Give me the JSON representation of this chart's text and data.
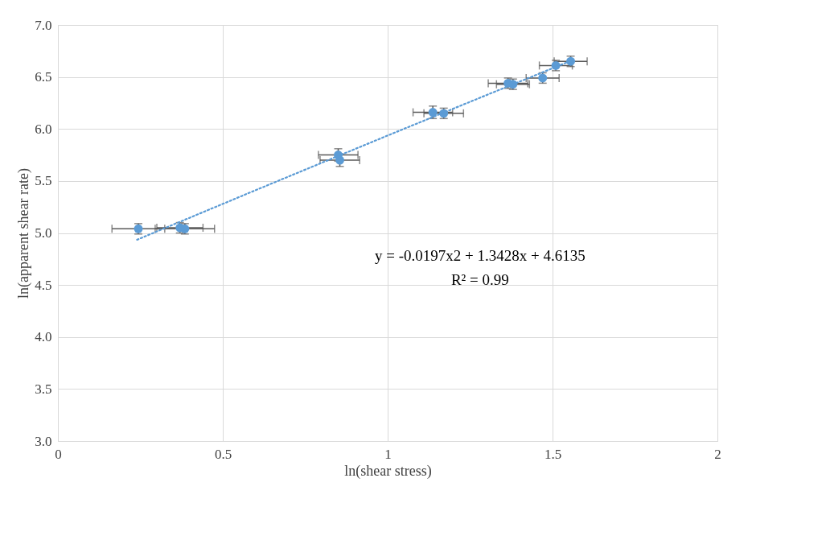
{
  "chart_data": {
    "type": "scatter",
    "xlabel": "ln(shear stress)",
    "ylabel": "ln(apparent  shear rate)",
    "xlim": [
      0,
      2
    ],
    "xticks": [
      0,
      0.5,
      1,
      1.5,
      2
    ],
    "ylim": [
      3.0,
      7.0
    ],
    "yticks": [
      {
        "value": 3,
        "label": "3.0"
      },
      3.5,
      {
        "value": 4,
        "label": "4.0"
      },
      4.5,
      {
        "value": 5,
        "label": "5.0"
      },
      5.5,
      {
        "value": 6,
        "label": "6.0"
      },
      6.5,
      {
        "value": 7,
        "label": "7.0"
      }
    ],
    "grid": true,
    "marker": "circle",
    "series": [
      {
        "color": "#5b9bd5",
        "x": [
          0.244,
          0.37,
          0.385,
          0.85,
          0.855,
          1.137,
          1.17,
          1.365,
          1.38,
          1.47,
          1.51,
          1.555
        ],
        "values": [
          5.04,
          5.05,
          5.04,
          5.75,
          5.7,
          6.16,
          6.15,
          6.44,
          6.43,
          6.49,
          6.61,
          6.65
        ],
        "xerrors": [
          0.08,
          0.07,
          0.09,
          0.06,
          0.06,
          0.06,
          0.06,
          0.06,
          0.05,
          0.05,
          0.05,
          0.05
        ],
        "errors": [
          0.05,
          0.05,
          0.05,
          0.06,
          0.06,
          0.06,
          0.05,
          0.05,
          0.05,
          0.05,
          0.05,
          0.05
        ]
      },
      {
        "type": "line",
        "color": "#5b9bd5",
        "line_style": "dotted",
        "marker": "none",
        "x": [
          0.24,
          0.6,
          1.0,
          1.3,
          1.55
        ],
        "values": [
          4.935,
          5.412,
          5.937,
          6.326,
          6.648
        ]
      }
    ],
    "annotations": [
      "y = -0.0197x2  + 1.3428x + 4.6135",
      "R² = 0.99"
    ]
  }
}
